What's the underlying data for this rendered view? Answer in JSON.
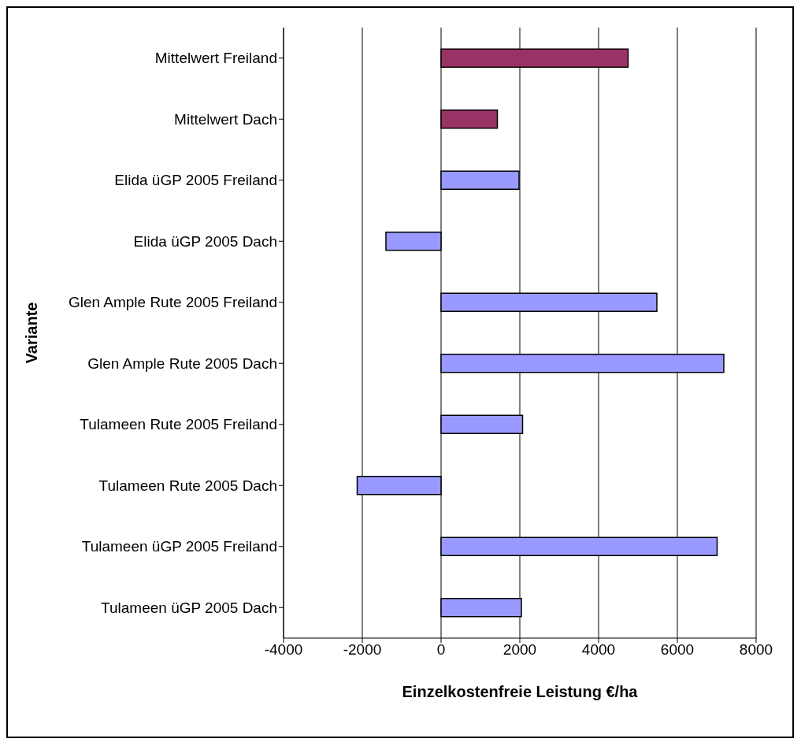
{
  "chart_data": {
    "type": "bar",
    "orientation": "horizontal",
    "xlabel": "Einzelkostenfreie Leistung €/ha",
    "ylabel": "Variante",
    "categories": [
      "Mittelwert Freiland",
      "Mittelwert Dach",
      "Elida üGP 2005 Freiland",
      "Elida üGP 2005 Dach",
      "Glen Ample Rute 2005 Freiland",
      "Glen Ample Rute 2005 Dach",
      "Tulameen Rute 2005 Freiland",
      "Tulameen Rute 2005 Dach",
      "Tulameen üGP 2005 Freiland",
      "Tulameen üGP 2005 Dach"
    ],
    "values": [
      4750,
      1430,
      1980,
      -1400,
      5480,
      7180,
      2070,
      -2130,
      7010,
      2040
    ],
    "colors": [
      "#993366",
      "#993366",
      "#9999ff",
      "#9999ff",
      "#9999ff",
      "#9999ff",
      "#9999ff",
      "#9999ff",
      "#9999ff",
      "#9999ff"
    ],
    "xlim": [
      -4000,
      8000
    ],
    "xticks": [
      -4000,
      -2000,
      0,
      2000,
      4000,
      6000,
      8000
    ],
    "grid": "x"
  }
}
